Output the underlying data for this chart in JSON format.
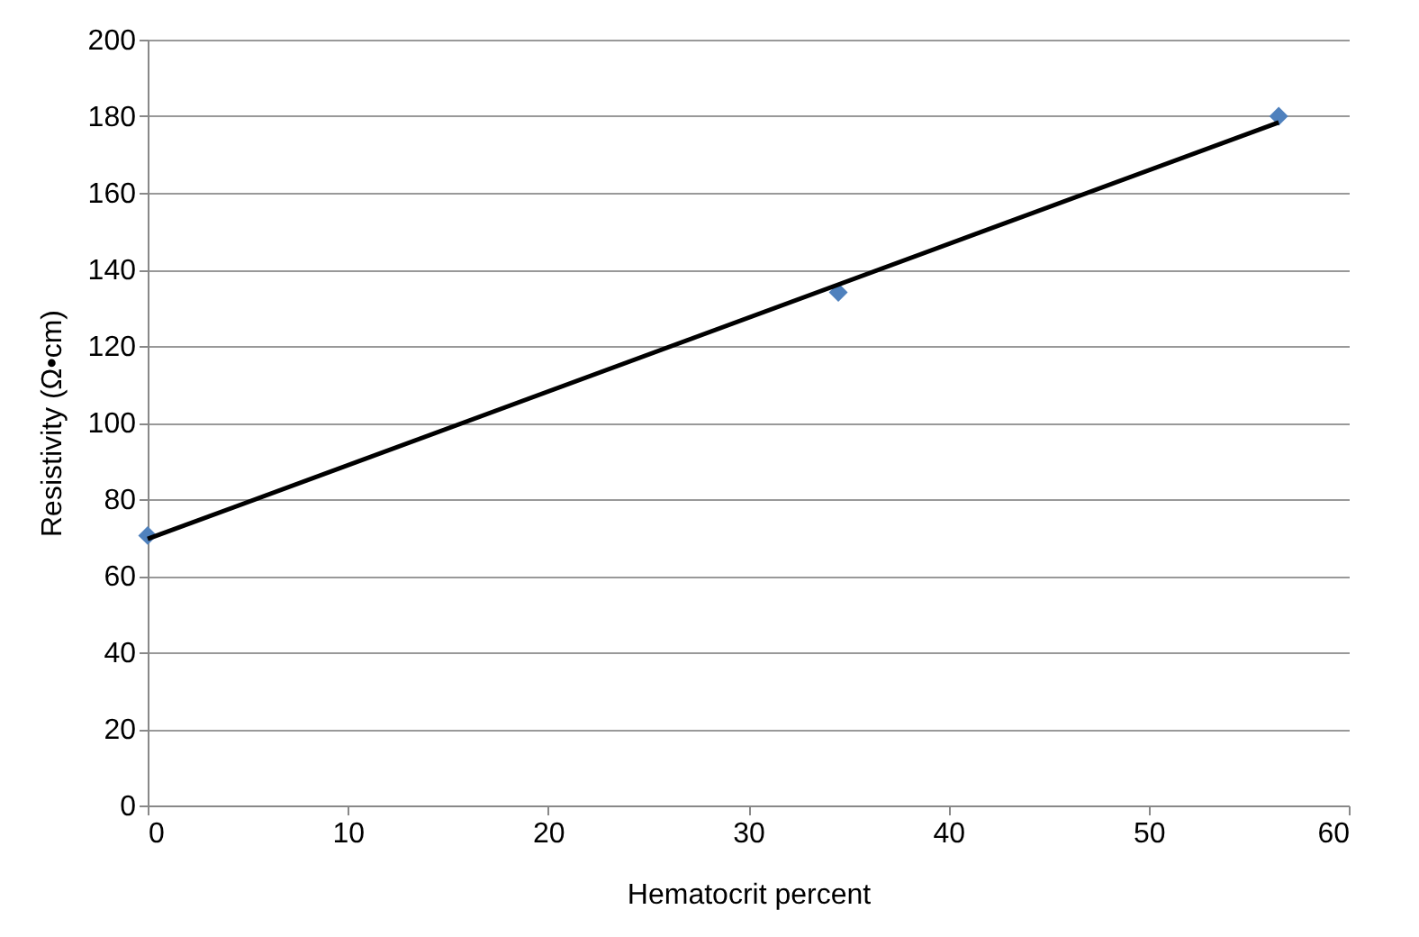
{
  "chart_data": {
    "type": "scatter",
    "xlabel": "Hematocrit percent",
    "ylabel": "Resistivity (Ω•cm)",
    "xlim": [
      0,
      60
    ],
    "xticks": [
      0,
      10,
      20,
      30,
      40,
      50,
      60
    ],
    "ylim": [
      0,
      200
    ],
    "yticks": [
      0,
      20,
      40,
      60,
      80,
      100,
      120,
      140,
      160,
      180,
      200
    ],
    "grid": "y",
    "marker": "diamond",
    "series": [
      {
        "color": "#4f81bd",
        "x": [
          0,
          34.5,
          56.5
        ],
        "values": [
          70.5,
          134,
          180
        ]
      },
      {
        "type": "line",
        "color": "#000000",
        "x": [
          0,
          56.5
        ],
        "values": [
          69.6,
          178.4
        ],
        "marker": "none",
        "line_style": "solid"
      }
    ]
  }
}
